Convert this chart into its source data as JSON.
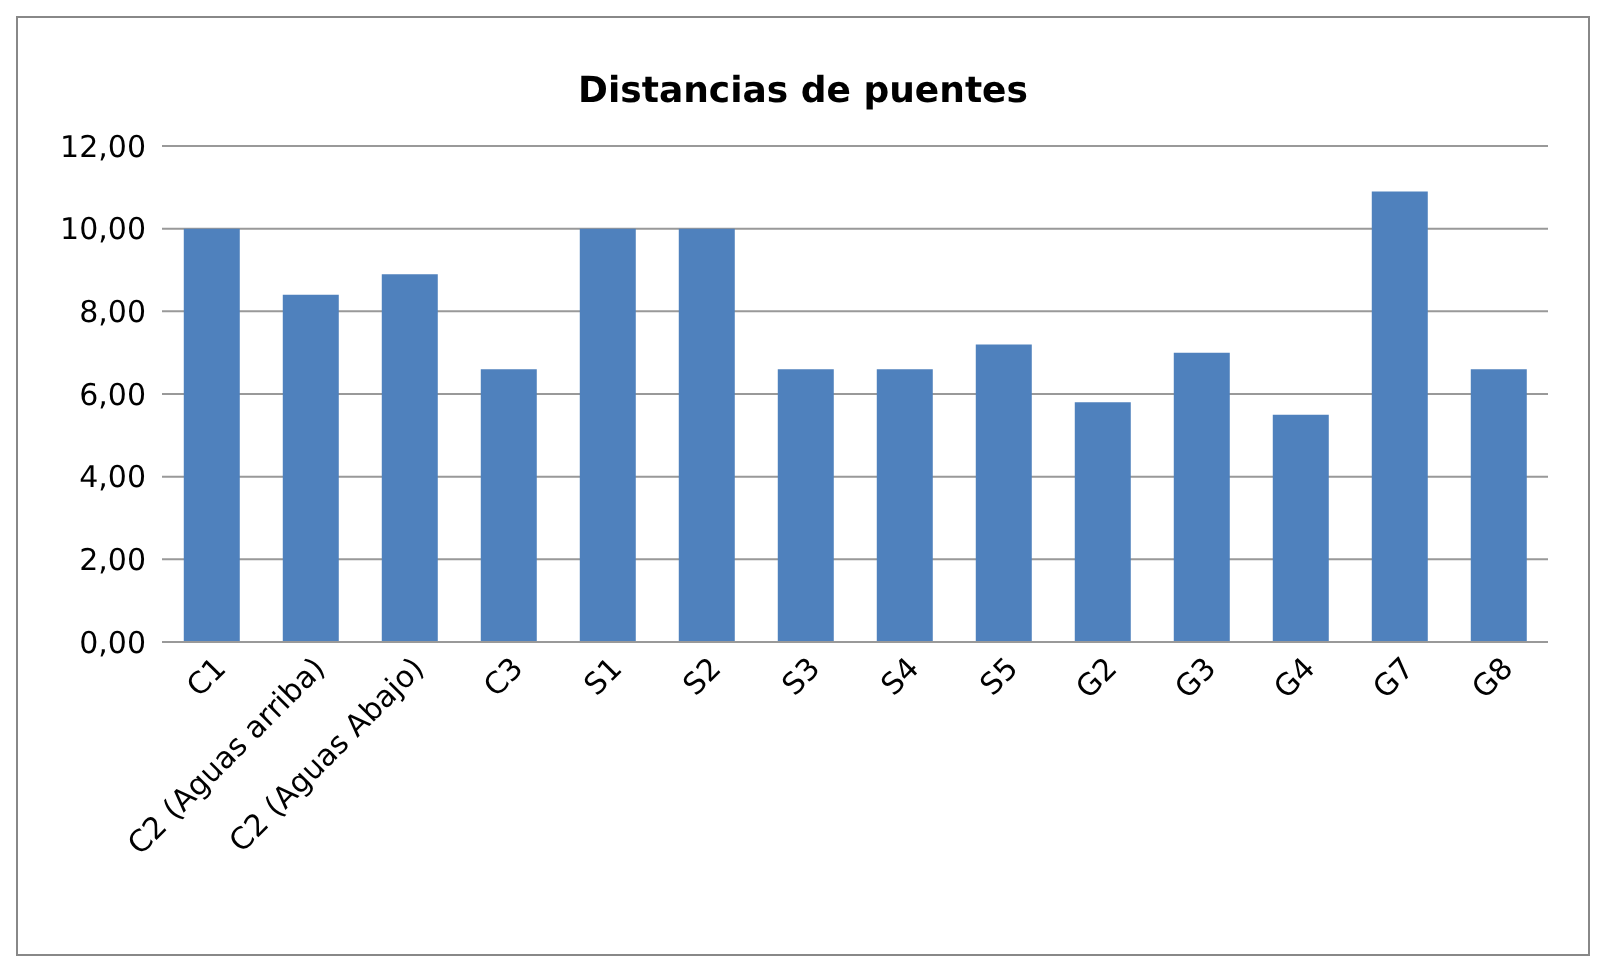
{
  "chart_data": {
    "type": "bar",
    "title": "Distancias de puentes",
    "categories": [
      "C1",
      "C2 (Aguas arriba)",
      "C2 (Aguas Abajo)",
      "C3",
      "S1",
      "S2",
      "S3",
      "S4",
      "S5",
      "G2",
      "G3",
      "G4",
      "G7",
      "G8"
    ],
    "values": [
      10.0,
      8.4,
      8.9,
      6.6,
      10.0,
      10.0,
      6.6,
      6.6,
      7.2,
      5.8,
      7.0,
      5.5,
      10.9,
      6.6
    ],
    "color": "#4f81bd",
    "ylim": [
      0,
      12
    ],
    "yticks": [
      {
        "value": 0,
        "label": "0,00"
      },
      {
        "value": 2,
        "label": "2,00"
      },
      {
        "value": 4,
        "label": "4,00"
      },
      {
        "value": 6,
        "label": "6,00"
      },
      {
        "value": 8,
        "label": "8,00"
      },
      {
        "value": 10,
        "label": "10,00"
      },
      {
        "value": 12,
        "label": "12,00"
      }
    ],
    "grid": "y",
    "legend": false
  }
}
